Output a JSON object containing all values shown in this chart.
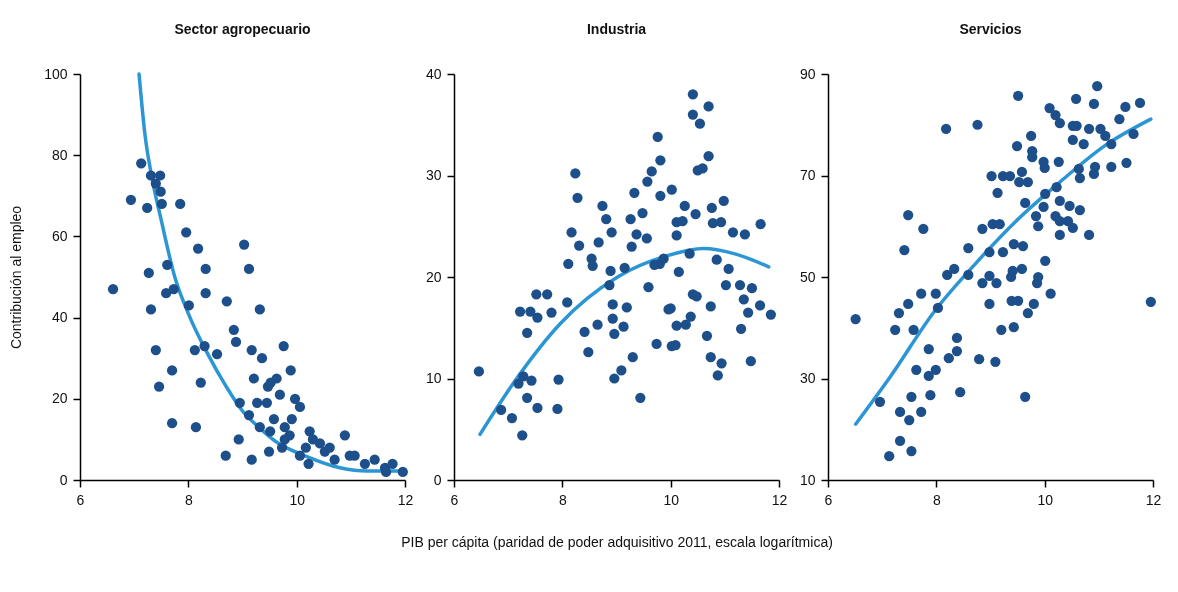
{
  "chart_data": [
    {
      "type": "scatter",
      "title": "Sector agropecuario",
      "ylabel": "Contribución al empleo",
      "xlim": [
        6,
        12
      ],
      "xticks": [
        6,
        8,
        10,
        12
      ],
      "ylim": [
        0,
        100
      ],
      "yticks": [
        0,
        20,
        40,
        60,
        80,
        100
      ],
      "series": [
        {
          "marker": "circle",
          "color": "#1d4f8a",
          "x": [
            6.61,
            6.94,
            7.13,
            7.24,
            7.31,
            7.4,
            7.48,
            7.49,
            7.51,
            7.27,
            7.31,
            7.4,
            7.46,
            7.7,
            7.7,
            7.61,
            7.59,
            7.73,
            7.85,
            7.96,
            8.01,
            8.12,
            8.14,
            8.18,
            8.23,
            8.32,
            8.3,
            8.32,
            8.53,
            8.69,
            8.71,
            8.84,
            8.88,
            8.93,
            9.03,
            9.12,
            9.17,
            9.17,
            9.21,
            9.32,
            9.36,
            9.45,
            9.47,
            9.49,
            9.73,
            9.69,
            9.76,
            9.78,
            9.89,
            9.97,
            10.06,
            10.06,
            10.17,
            10.24,
            10.3,
            10.43,
            10.52,
            10.7,
            10.89,
            10.98,
            11.07,
            11.26,
            11.44,
            11.63,
            11.77,
            11.96,
            11.65,
            9.58,
            9.52,
            9.63,
            9.12,
            9.32,
            9.51,
            9.87,
            9.91,
            9.78,
            9.27,
            8.95,
            10.22,
            10.61
          ],
          "values": [
            47,
            69,
            78,
            67,
            75,
            73,
            75,
            71,
            68,
            51,
            42,
            32,
            23,
            14,
            27,
            53,
            46,
            47,
            68,
            61,
            43,
            32,
            13,
            57,
            24,
            52,
            33,
            46,
            31,
            6,
            44,
            37,
            34,
            10,
            58,
            52,
            5,
            32,
            25,
            42,
            30,
            19,
            23,
            7,
            8,
            21,
            33,
            13,
            27,
            20,
            18,
            6,
            8,
            12,
            10,
            9,
            7,
            5,
            11,
            6,
            6,
            4,
            5,
            3,
            4,
            2,
            2,
            15,
            24,
            25,
            16,
            13,
            12,
            11,
            15,
            10,
            19,
            19,
            4,
            8
          ]
        },
        {
          "type": "line",
          "color": "#2c96d5",
          "x": [
            7.09,
            7.2,
            7.32,
            7.5,
            7.75,
            8.0,
            8.36,
            8.7,
            9.0,
            9.3,
            9.6,
            10.2,
            10.8,
            11.3,
            11.9
          ],
          "values": [
            100,
            85,
            75,
            64,
            50,
            41,
            31,
            23,
            17,
            13,
            9.6,
            5.7,
            3,
            2.2,
            2.2
          ]
        }
      ]
    },
    {
      "type": "scatter",
      "title": "Industria",
      "xlabel": "PIB per cápita (paridad de poder adquisitivo 2011, escala logarítmica)",
      "xlim": [
        6,
        12
      ],
      "xticks": [
        6,
        8,
        10,
        12
      ],
      "ylim": [
        0,
        40
      ],
      "yticks": [
        0,
        10,
        20,
        30,
        40
      ],
      "series": [
        {
          "marker": "circle",
          "color": "#1d4f8a",
          "x": [
            6.46,
            6.87,
            7.07,
            7.26,
            7.19,
            7.28,
            7.43,
            7.35,
            7.54,
            7.22,
            7.41,
            7.54,
            7.35,
            7.52,
            7.72,
            7.8,
            7.91,
            7.93,
            8.09,
            8.11,
            8.17,
            8.24,
            8.31,
            8.48,
            8.56,
            8.65,
            8.41,
            8.67,
            8.96,
            9.09,
            8.89,
            8.87,
            8.93,
            8.93,
            8.96,
            9.13,
            9.19,
            9.3,
            9.44,
            9.26,
            9.28,
            9.15,
            9.48,
            9.37,
            9.59,
            9.8,
            9.96,
            10.02,
            10.11,
            10.37,
            10.67,
            10.22,
            10.5,
            10.26,
            10.46,
            10.78,
            10.93,
            10.76,
            10.98,
            11.07,
            11.02,
            11.28,
            11.5,
            11.35,
            11.65,
            11.43,
            11.85,
            11.37,
            11.66,
            11.15,
            10.74,
            10.87,
            10.94,
            11.48,
            11.3,
            10.85,
            10.74,
            10.35,
            10.15,
            10.09,
            9.74,
            10.59,
            10.7,
            10.41,
            10.54,
            10.7,
            10.41,
            9.65,
            9.57,
            9.76,
            9.81,
            9.81,
            9.56,
            10.02,
            10.11,
            9.87,
            10.11,
            9.7,
            10.28,
            10.48,
            10.41,
            10.0,
            8.74,
            8.91,
            8.81,
            9.33,
            8.28,
            8.54
          ],
          "values": [
            10.7,
            6.9,
            6.1,
            4.4,
            9.5,
            10.2,
            9.8,
            8.1,
            7.1,
            16.6,
            16.6,
            16,
            14.5,
            18.3,
            18.3,
            16.5,
            7,
            9.9,
            17.5,
            21.3,
            24.4,
            30.2,
            23.1,
            12.6,
            21.1,
            15.3,
            14.6,
            23.4,
            10,
            10.8,
            20.6,
            19.2,
            17.3,
            15.9,
            14.4,
            15.1,
            17,
            12.1,
            8.1,
            25.7,
            23,
            20.9,
            26.3,
            24.2,
            19,
            21.3,
            16.8,
            13.2,
            15.2,
            16.1,
            14.2,
            25.5,
            30.5,
            27,
            26.2,
            25.3,
            25.4,
            26.8,
            27.5,
            20.8,
            19.2,
            19.2,
            18.9,
            17.8,
            17.2,
            16.5,
            16.3,
            24.2,
            25.2,
            24.4,
            12.1,
            10.3,
            11.5,
            11.7,
            14.9,
            21.7,
            17.1,
            22.3,
            20.5,
            13.3,
            13.4,
            30.7,
            31.9,
            36,
            35.1,
            36.8,
            38,
            30.4,
            29.4,
            33.8,
            31.5,
            28,
            23.8,
            28.6,
            25.4,
            21.8,
            24.1,
            21.2,
            15.3,
            18.1,
            18.3,
            16.9,
            27,
            24.4,
            25.7,
            28.3,
            27.8,
            21.8
          ]
        },
        {
          "type": "line",
          "color": "#2c96d5",
          "x": [
            6.48,
            7.17,
            7.96,
            9.02,
            9.94,
            10.61,
            11.17,
            11.81
          ],
          "values": [
            4.5,
            10.1,
            15.4,
            20,
            22.1,
            22.8,
            22.3,
            21
          ]
        }
      ]
    },
    {
      "type": "scatter",
      "title": "Servicios",
      "xlim": [
        6,
        12
      ],
      "xticks": [
        6,
        8,
        10,
        12
      ],
      "ylim": [
        10,
        90
      ],
      "yticks": [
        10,
        30,
        50,
        70,
        90
      ],
      "series": [
        {
          "marker": "circle",
          "color": "#1d4f8a",
          "x": [
            6.51,
            6.96,
            7.13,
            7.33,
            7.54,
            7.33,
            7.5,
            7.54,
            7.72,
            7.89,
            7.63,
            7.86,
            7.99,
            7.86,
            7.24,
            7.58,
            7.31,
            7.48,
            7.72,
            7.99,
            8.03,
            7.41,
            7.76,
            7.48,
            8.18,
            8.76,
            8.44,
            8.23,
            8.38,
            8.38,
            8.2,
            8.33,
            8.59,
            8.79,
            9.09,
            8.59,
            8.85,
            9.04,
            9.17,
            8.98,
            9.23,
            8.85,
            8.98,
            9.11,
            8.98,
            9.2,
            9.43,
            9.39,
            9.51,
            9.38,
            9.41,
            9.58,
            9.69,
            9.8,
            9.86,
            9.88,
            10.11,
            10.01,
            9.64,
            9.43,
            9.6,
            9.13,
            9.02,
            9.23,
            9.36,
            9.58,
            9.53,
            9.69,
            9.64,
            9.49,
            9.75,
            9.77,
            9.77,
            9.51,
            9.98,
            10,
            9.84,
            9.88,
            9.98,
            10.01,
            10.22,
            10.28,
            10.2,
            10.28,
            10.28,
            10.46,
            10.43,
            10.52,
            10.65,
            10.82,
            10.09,
            10.2,
            10.28,
            10.52,
            10.59,
            10.52,
            10.72,
            10.58,
            10.91,
            10.97,
            10.82,
            11.03,
            11.12,
            11.23,
            10.26,
            10.63,
            10.65,
            10.91,
            10.93,
            11.23,
            11.51,
            11.64,
            11.38,
            11.49,
            11.76,
            11.96
          ],
          "values": [
            41.7,
            25.4,
            14.7,
            17.7,
            15.7,
            23.4,
            21.8,
            26.4,
            23.4,
            26.7,
            31.7,
            30.5,
            31.7,
            35.8,
            39.6,
            39.6,
            42.9,
            44.7,
            46.7,
            46.7,
            43.9,
            55.3,
            59.5,
            62.2,
            79.2,
            80,
            27.3,
            34,
            35.4,
            38,
            50.4,
            51.6,
            50.4,
            33.8,
            33.3,
            55.7,
            59.5,
            60.4,
            60.4,
            54.9,
            54.9,
            48.8,
            50.2,
            48.8,
            44.7,
            39.6,
            40.1,
            45.3,
            45.3,
            50,
            51.2,
            51.6,
            42.9,
            44.7,
            48.8,
            50,
            46.7,
            53.2,
            26.4,
            56.5,
            56.1,
            66.6,
            69.9,
            69.9,
            69.9,
            70.7,
            68.7,
            68.7,
            64.6,
            75.8,
            77.8,
            74.8,
            73.6,
            85.7,
            72.7,
            71.5,
            62,
            60,
            63.8,
            66.4,
            67.7,
            65,
            62,
            61,
            58.3,
            64,
            61,
            59.7,
            63.2,
            58.3,
            83.3,
            81.9,
            80.3,
            79.8,
            79.8,
            77,
            76.2,
            85.1,
            84.1,
            87.6,
            79.2,
            79.2,
            77.8,
            76.2,
            72.7,
            71.3,
            69.5,
            70.3,
            71.7,
            71.7,
            72.5,
            78.2,
            81.1,
            83.5,
            84.3,
            45.1
          ]
        },
        {
          "type": "line",
          "color": "#2c96d5",
          "x": [
            6.51,
            7.16,
            7.97,
            8.72,
            9.47,
            10.28,
            11.1,
            11.96
          ],
          "values": [
            21,
            30.5,
            43.3,
            52.6,
            61,
            68.7,
            75.8,
            81.1
          ]
        }
      ]
    }
  ]
}
